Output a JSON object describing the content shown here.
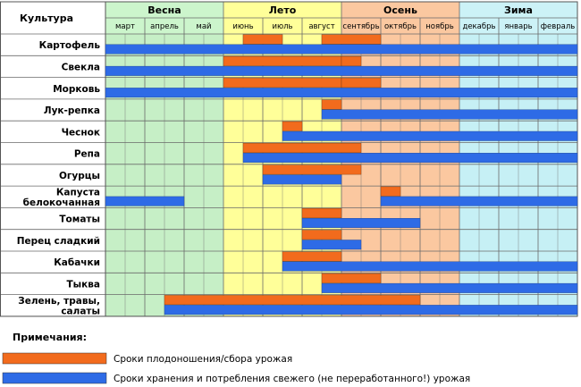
{
  "chart_data": {
    "type": "table",
    "title": "Культура",
    "seasons": [
      {
        "name": "Весна",
        "color": "#c6efc6",
        "header_color": "#ccf5cc",
        "months": [
          0,
          1,
          2
        ]
      },
      {
        "name": "Лето",
        "color": "#ffff99",
        "header_color": "#ffff99",
        "months": [
          3,
          4,
          5
        ]
      },
      {
        "name": "Осень",
        "color": "#fbc8a0",
        "header_color": "#fbc8a0",
        "months": [
          6,
          7,
          8
        ]
      },
      {
        "name": "Зима",
        "color": "#c6f0f5",
        "header_color": "#ccf2f7",
        "months": [
          9,
          10,
          11
        ]
      }
    ],
    "months": [
      "март",
      "апрель",
      "май",
      "июнь",
      "июль",
      "август",
      "сентябрь",
      "октябрь",
      "ноябрь",
      "декабрь",
      "январь",
      "февраль"
    ],
    "half_months_per_month": 2,
    "series": [
      {
        "name": "Сроки плодоношения/сбора урожая",
        "color": "#f26b1d",
        "key": "harvest"
      },
      {
        "name": "Сроки хранения и потребления свежего (не переработанного!) урожая",
        "color": "#2e6be6",
        "key": "storage"
      }
    ],
    "crops": [
      {
        "name": [
          "Картофель"
        ],
        "harvest": [
          [
            7,
            9
          ],
          [
            11,
            14
          ]
        ],
        "storage": [
          [
            0,
            24
          ]
        ]
      },
      {
        "name": [
          "Свекла"
        ],
        "harvest": [
          [
            6,
            12
          ],
          [
            12,
            13
          ]
        ],
        "storage": [
          [
            0,
            24
          ]
        ]
      },
      {
        "name": [
          "Морковь"
        ],
        "harvest": [
          [
            6,
            12
          ],
          [
            12,
            14
          ]
        ],
        "storage": [
          [
            0,
            24
          ]
        ]
      },
      {
        "name": [
          "Лук-репка"
        ],
        "harvest": [
          [
            11,
            12
          ]
        ],
        "storage": [
          [
            11,
            24
          ]
        ]
      },
      {
        "name": [
          "Чеснок"
        ],
        "harvest": [
          [
            9,
            10
          ]
        ],
        "storage": [
          [
            9,
            24
          ]
        ]
      },
      {
        "name": [
          "Репа"
        ],
        "harvest": [
          [
            7,
            13
          ]
        ],
        "storage": [
          [
            7,
            24
          ]
        ]
      },
      {
        "name": [
          "Огурцы"
        ],
        "harvest": [
          [
            8,
            13
          ]
        ],
        "storage": [
          [
            8,
            12
          ]
        ]
      },
      {
        "name": [
          "Капуста",
          "белокочанная"
        ],
        "harvest": [
          [
            14,
            15
          ]
        ],
        "storage": [
          [
            0,
            4
          ],
          [
            14,
            24
          ]
        ]
      },
      {
        "name": [
          "Томаты"
        ],
        "harvest": [
          [
            10,
            12
          ]
        ],
        "storage": [
          [
            10,
            16
          ]
        ]
      },
      {
        "name": [
          "Перец сладкий"
        ],
        "harvest": [
          [
            10,
            12
          ]
        ],
        "storage": [
          [
            10,
            13
          ]
        ]
      },
      {
        "name": [
          "Кабачки"
        ],
        "harvest": [
          [
            9,
            12
          ]
        ],
        "storage": [
          [
            9,
            24
          ]
        ]
      },
      {
        "name": [
          "Тыква"
        ],
        "harvest": [
          [
            11,
            14
          ]
        ],
        "storage": [
          [
            11,
            24
          ]
        ]
      },
      {
        "name": [
          "Зелень, травы,",
          "салаты"
        ],
        "harvest": [
          [
            3,
            16
          ]
        ],
        "storage": [
          [
            3,
            24
          ]
        ]
      }
    ]
  },
  "notes": {
    "title": "Примечания:",
    "harvest_label": "Сроки плодоношения/сбора урожая",
    "storage_label": "Сроки хранения и потребления свежего (не переработанного!) урожая"
  }
}
